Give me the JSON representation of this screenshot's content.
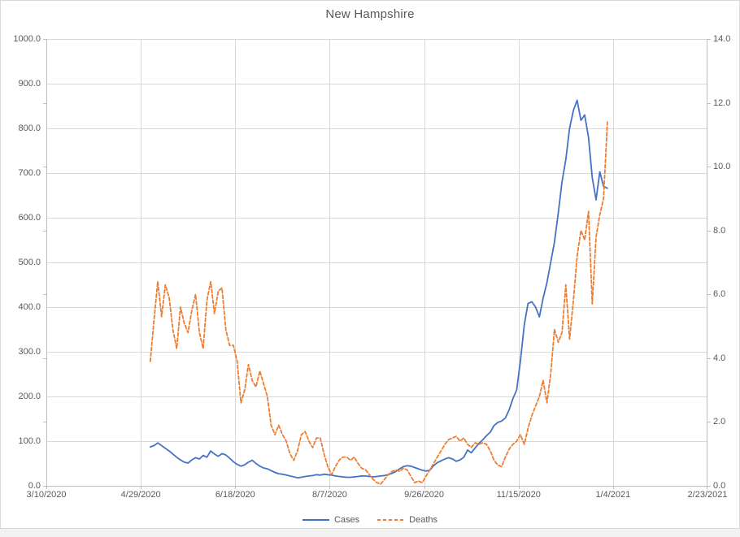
{
  "frame": {
    "background": "#FFFFFF",
    "border_color": "#D9D9D9",
    "outside_strip_color": "#F2F2F2"
  },
  "chart_data": {
    "type": "line",
    "title": "New Hampshire",
    "legend_position": "bottom",
    "grid": true,
    "styles": {
      "grid_color": "#D9D9D9",
      "axis_color": "#BFBFBF",
      "text_color": "#595959",
      "title_color": "#595959"
    },
    "x_axis": {
      "tick_labels": [
        "3/10/2020",
        "4/29/2020",
        "6/18/2020",
        "8/7/2020",
        "9/26/2020",
        "11/15/2020",
        "1/4/2021",
        "2/23/2021"
      ],
      "tick_days": [
        0,
        50,
        100,
        150,
        200,
        250,
        300,
        350
      ],
      "range_days": [
        0,
        350
      ]
    },
    "y_axis_left": {
      "min": 0,
      "max": 1000,
      "step": 100,
      "tick_labels": [
        "0.0",
        "100.0",
        "200.0",
        "300.0",
        "400.0",
        "500.0",
        "600.0",
        "700.0",
        "800.0",
        "900.0",
        "1000.0"
      ],
      "series": "Cases"
    },
    "y_axis_right": {
      "min": 0,
      "max": 14,
      "step": 2,
      "tick_labels": [
        "0.0",
        "2.0",
        "4.0",
        "6.0",
        "8.0",
        "10.0",
        "12.0",
        "14.0"
      ],
      "series": "Deaths"
    },
    "x_days": [
      55,
      57,
      59,
      61,
      63,
      65,
      67,
      69,
      71,
      73,
      75,
      77,
      79,
      81,
      83,
      85,
      87,
      89,
      91,
      93,
      95,
      97,
      99,
      101,
      103,
      105,
      107,
      109,
      111,
      113,
      115,
      117,
      119,
      121,
      123,
      125,
      127,
      129,
      131,
      133,
      135,
      137,
      139,
      141,
      143,
      145,
      147,
      149,
      151,
      153,
      155,
      157,
      159,
      161,
      163,
      165,
      167,
      169,
      171,
      173,
      175,
      177,
      179,
      181,
      183,
      185,
      187,
      189,
      191,
      193,
      195,
      197,
      199,
      201,
      203,
      205,
      207,
      209,
      211,
      213,
      215,
      217,
      219,
      221,
      223,
      225,
      227,
      229,
      231,
      233,
      235,
      237,
      239,
      241,
      243,
      245,
      247,
      249,
      251,
      253,
      255,
      257,
      259,
      261,
      263,
      265,
      267,
      269,
      271,
      273,
      275,
      277,
      279,
      281,
      283,
      285,
      287,
      289,
      291,
      293,
      295,
      297
    ],
    "series": [
      {
        "name": "Cases",
        "axis": "left",
        "color": "#4472C4",
        "dash": "solid",
        "values": [
          87,
          90,
          96,
          90,
          84,
          78,
          71,
          64,
          58,
          53,
          51,
          58,
          63,
          60,
          68,
          64,
          78,
          71,
          66,
          72,
          69,
          62,
          54,
          48,
          44,
          47,
          53,
          57,
          50,
          44,
          40,
          38,
          34,
          30,
          27,
          26,
          24,
          22,
          20,
          18,
          19,
          21,
          22,
          23,
          25,
          24,
          26,
          25,
          24,
          22,
          21,
          20,
          19,
          19,
          20,
          21,
          22,
          22,
          21,
          20,
          21,
          22,
          23,
          25,
          28,
          32,
          38,
          43,
          45,
          44,
          41,
          38,
          35,
          33,
          35,
          45,
          52,
          56,
          60,
          63,
          60,
          55,
          58,
          64,
          80,
          74,
          85,
          95,
          103,
          112,
          120,
          135,
          142,
          145,
          152,
          170,
          195,
          215,
          280,
          360,
          408,
          412,
          400,
          378,
          420,
          455,
          500,
          545,
          610,
          680,
          730,
          800,
          840,
          863,
          818,
          830,
          780,
          690,
          640,
          703,
          670,
          666
        ]
      },
      {
        "name": "Deaths",
        "axis": "right",
        "color": "#ED7D31",
        "dash": "dashed",
        "values": [
          3.9,
          5.2,
          6.4,
          5.3,
          6.3,
          5.9,
          4.9,
          4.3,
          5.6,
          5.1,
          4.8,
          5.5,
          6.0,
          4.8,
          4.3,
          5.8,
          6.4,
          5.4,
          6.1,
          6.2,
          4.9,
          4.4,
          4.4,
          3.9,
          2.6,
          3.0,
          3.8,
          3.3,
          3.1,
          3.6,
          3.2,
          2.8,
          1.9,
          1.6,
          1.9,
          1.6,
          1.4,
          1.0,
          0.8,
          1.1,
          1.6,
          1.7,
          1.4,
          1.2,
          1.5,
          1.5,
          1.0,
          0.6,
          0.35,
          0.6,
          0.8,
          0.9,
          0.9,
          0.8,
          0.9,
          0.7,
          0.55,
          0.5,
          0.35,
          0.2,
          0.1,
          0.05,
          0.2,
          0.35,
          0.45,
          0.5,
          0.45,
          0.55,
          0.5,
          0.3,
          0.1,
          0.15,
          0.1,
          0.3,
          0.5,
          0.7,
          0.9,
          1.1,
          1.3,
          1.45,
          1.5,
          1.55,
          1.4,
          1.5,
          1.3,
          1.2,
          1.35,
          1.3,
          1.35,
          1.3,
          1.1,
          0.8,
          0.65,
          0.6,
          0.9,
          1.15,
          1.3,
          1.4,
          1.6,
          1.3,
          1.8,
          2.2,
          2.5,
          2.8,
          3.3,
          2.6,
          3.5,
          4.9,
          4.5,
          4.8,
          6.3,
          4.6,
          5.8,
          7.2,
          8.0,
          7.7,
          8.6,
          5.7,
          7.8,
          8.5,
          9.0,
          11.4
        ]
      }
    ]
  }
}
